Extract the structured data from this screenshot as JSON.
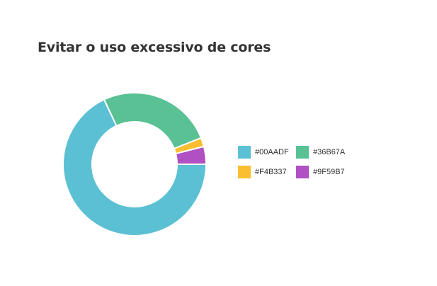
{
  "chart_data": {
    "type": "pie",
    "donut": true,
    "title": "Evitar o uso excessivo de cores",
    "categories": [
      "#00AADF",
      "#36B67A",
      "#F4B337",
      "#9F59B7"
    ],
    "values": [
      68,
      26,
      2,
      4
    ],
    "colors": [
      "#5BC0D3",
      "#59C194",
      "#FBBE30",
      "#B050C2"
    ],
    "legend": "right",
    "legend_columns": 2
  },
  "icons": {
    "legend_swatch": "square-swatch"
  }
}
